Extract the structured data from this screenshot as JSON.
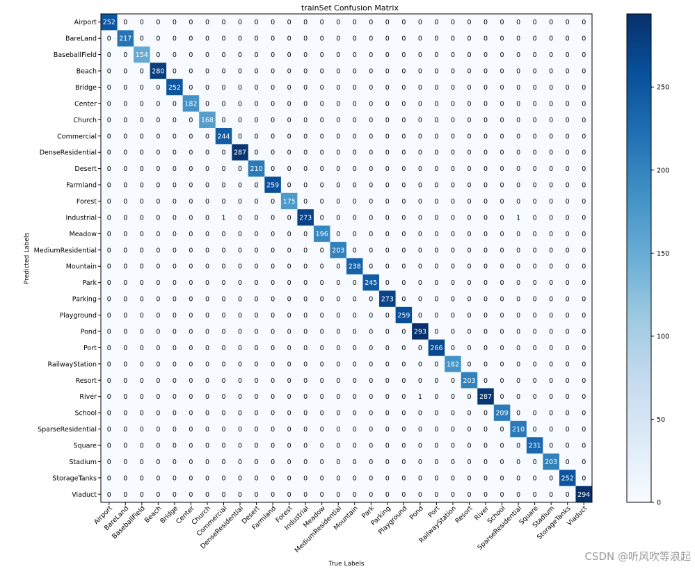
{
  "chart_data": {
    "type": "heatmap",
    "title": "trainSet Confusion Matrix",
    "xlabel": "True Labels",
    "ylabel": "Predicted Labels",
    "labels": [
      "Airport",
      "BareLand",
      "BaseballField",
      "Beach",
      "Bridge",
      "Center",
      "Church",
      "Commercial",
      "DenseResidential",
      "Desert",
      "Farmland",
      "Forest",
      "Industrial",
      "Meadow",
      "MediumResidential",
      "Mountain",
      "Park",
      "Parking",
      "Playground",
      "Pond",
      "Port",
      "RailwayStation",
      "Resort",
      "River",
      "School",
      "SparseResidential",
      "Square",
      "Stadium",
      "StorageTanks",
      "Viaduct"
    ],
    "diagonal": [
      252,
      217,
      154,
      280,
      252,
      182,
      168,
      244,
      287,
      210,
      259,
      175,
      273,
      196,
      203,
      238,
      245,
      273,
      259,
      293,
      266,
      182,
      203,
      287,
      209,
      210,
      231,
      203,
      252,
      294
    ],
    "off_diagonal": [
      {
        "row": 12,
        "col": 7,
        "value": 1
      },
      {
        "row": 12,
        "col": 25,
        "value": 1
      },
      {
        "row": 23,
        "col": 19,
        "value": 1
      }
    ],
    "colormap": "Blues",
    "colorbar": {
      "min": 0,
      "max": 294,
      "ticks": [
        0,
        50,
        100,
        150,
        200,
        250
      ]
    }
  },
  "watermark": "CSDN @听风吹等浪起"
}
